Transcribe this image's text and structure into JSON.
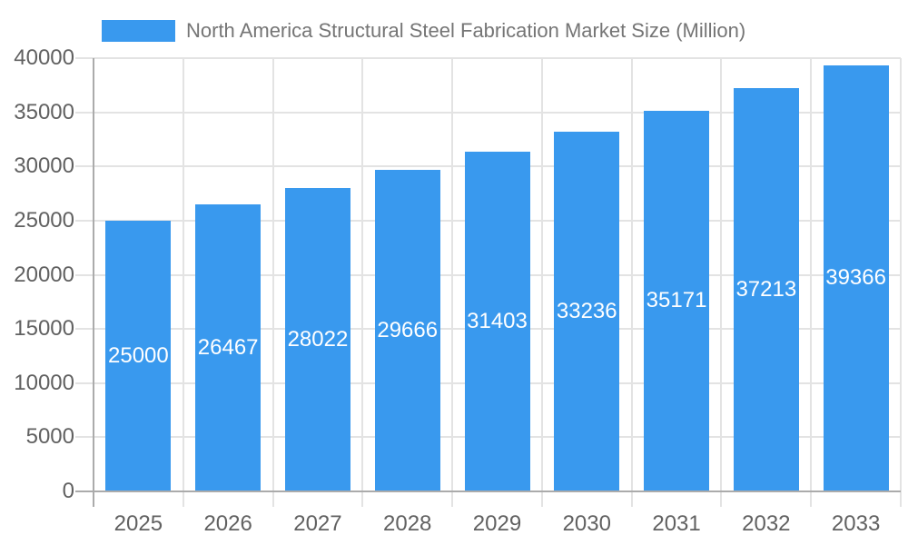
{
  "chart_data": {
    "type": "bar",
    "title": "North America Structural Steel Fabrication Market Size (Million)",
    "series_name": "North America Structural Steel Fabrication Market Size (Million)",
    "categories": [
      "2025",
      "2026",
      "2027",
      "2028",
      "2029",
      "2030",
      "2031",
      "2032",
      "2033"
    ],
    "values": [
      25000,
      26467,
      28022,
      29666,
      31403,
      33236,
      35171,
      37213,
      39366
    ],
    "xlabel": "",
    "ylabel": "",
    "ylim": [
      0,
      40000
    ],
    "yticks": [
      0,
      5000,
      10000,
      15000,
      20000,
      25000,
      30000,
      35000,
      40000
    ],
    "grid": true,
    "legend_position": "top",
    "value_labels": "inside-center-white",
    "colors": {
      "bar": "#3999ee",
      "gridline": "#e3e3e3",
      "axis_line": "#ababab",
      "axis_text": "#616161",
      "legend_text": "#757575",
      "value_label": "#ffffff",
      "background": "#ffffff"
    }
  }
}
